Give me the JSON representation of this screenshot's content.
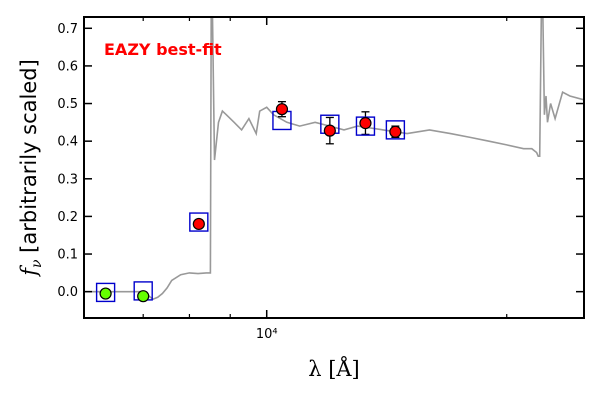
{
  "chart_data": {
    "type": "scatter",
    "title": "",
    "xlabel": "λ [Å]",
    "ylabel": "f_ν [arbitrarily scaled]",
    "x_scale": "log",
    "xlim": [
      5900,
      25000
    ],
    "ylim": [
      -0.07,
      0.73
    ],
    "x_major_ticks": [
      {
        "value": 10000,
        "label": "10⁴"
      }
    ],
    "x_minor_ticks": [
      7000,
      8000,
      9000,
      20000
    ],
    "yticks": [
      0.0,
      0.1,
      0.2,
      0.3,
      0.4,
      0.5,
      0.6,
      0.7
    ],
    "ytick_labels": [
      "0.0",
      "0.1",
      "0.2",
      "0.3",
      "0.4",
      "0.5",
      "0.6",
      "0.7"
    ],
    "annotation": {
      "text": "EAZY best-fit",
      "color": "#ff0000"
    },
    "colors": {
      "model": "#999999",
      "detected": "#ff0000",
      "non_detected": "#66ff00",
      "model_box": "#0000cc",
      "errorbar": "#000000"
    },
    "model_spectrum": {
      "name": "",
      "x": [
        5900,
        6300,
        6700,
        7000,
        7100,
        7200,
        7300,
        7350,
        7400,
        7500,
        7600,
        7800,
        8000,
        8200,
        8400,
        8500,
        8520,
        8550,
        8600,
        8700,
        8800,
        8900,
        9100,
        9300,
        9500,
        9700,
        9800,
        10000,
        10200,
        10400,
        10600,
        11000,
        11500,
        12000,
        12500,
        13000,
        14000,
        15000,
        16000,
        17000,
        18000,
        19000,
        20000,
        21000,
        21500,
        21800,
        21900,
        22000,
        22100,
        22200,
        22300,
        22400,
        22500,
        22700,
        23000,
        23500,
        24000,
        25000
      ],
      "y": [
        0.0,
        0.0,
        0.0,
        0.0,
        -0.01,
        -0.02,
        -0.015,
        -0.01,
        -0.005,
        0.01,
        0.03,
        0.045,
        0.05,
        0.048,
        0.05,
        0.05,
        0.73,
        0.73,
        0.35,
        0.45,
        0.48,
        0.47,
        0.45,
        0.43,
        0.46,
        0.42,
        0.48,
        0.49,
        0.47,
        0.46,
        0.45,
        0.44,
        0.45,
        0.44,
        0.43,
        0.44,
        0.43,
        0.42,
        0.43,
        0.42,
        0.41,
        0.4,
        0.39,
        0.38,
        0.38,
        0.37,
        0.36,
        0.36,
        0.73,
        0.73,
        0.47,
        0.52,
        0.45,
        0.5,
        0.46,
        0.53,
        0.52,
        0.51
      ]
    },
    "series": [
      {
        "name": "",
        "marker": "circle",
        "points": [
          {
            "x": 6280,
            "y": -0.005
          },
          {
            "x": 7000,
            "y": -0.012
          }
        ]
      },
      {
        "name": "",
        "marker": "circle",
        "points": [
          {
            "x": 8220,
            "y": 0.18,
            "yerr": 0.0
          },
          {
            "x": 10450,
            "y": 0.485,
            "yerr": 0.02
          },
          {
            "x": 12000,
            "y": 0.428,
            "yerr": 0.035
          },
          {
            "x": 13300,
            "y": 0.448,
            "yerr": 0.03
          },
          {
            "x": 14500,
            "y": 0.425,
            "yerr": 0.015
          }
        ]
      }
    ],
    "model_photometry": {
      "marker": "square",
      "points": [
        {
          "x": 6280,
          "y": -0.002
        },
        {
          "x": 7000,
          "y": 0.002
        },
        {
          "x": 8220,
          "y": 0.185
        },
        {
          "x": 10450,
          "y": 0.455
        },
        {
          "x": 12000,
          "y": 0.445
        },
        {
          "x": 13300,
          "y": 0.44
        },
        {
          "x": 14500,
          "y": 0.43
        }
      ]
    }
  }
}
